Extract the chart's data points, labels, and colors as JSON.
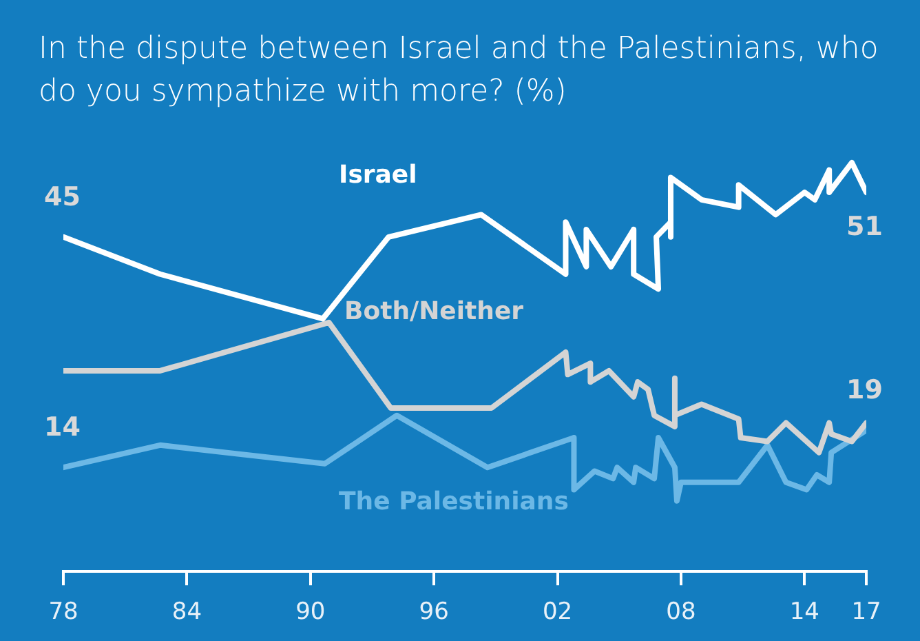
{
  "chart_data": {
    "type": "line",
    "title": "In the dispute between Israel and the Palestinians, who do you sympathize with more? (%)",
    "xlim": [
      1978,
      2017
    ],
    "xticks": [
      {
        "value": 1978,
        "label": "78"
      },
      {
        "value": 1984,
        "label": "84"
      },
      {
        "value": 1990,
        "label": "90"
      },
      {
        "value": 1996,
        "label": "96"
      },
      {
        "value": 2002,
        "label": "02"
      },
      {
        "value": 2008,
        "label": "08"
      },
      {
        "value": 2014,
        "label": "14"
      },
      {
        "value": 2017,
        "label": "17"
      }
    ],
    "tick_labels": "x",
    "grid": false,
    "legend": false,
    "marker": "none",
    "line_style": "solid",
    "series": [
      {
        "name": "Israel",
        "color": "#ffffff",
        "x": [
          1978,
          1982.7,
          1990.6,
          1993.8,
          1998.3,
          2002.4,
          2002.4,
          2003.4,
          2003.4,
          2004.6,
          2005.7,
          2005.7,
          2006.9,
          2006.8,
          2007.5,
          2007.5,
          2007.5,
          2009.0,
          2010.8,
          2010.8,
          2012.6,
          2014.0,
          2014.5,
          2015.2,
          2015.2,
          2016.3,
          2017
        ],
        "values": [
          45,
          40,
          34,
          45,
          48,
          40,
          47,
          41,
          46,
          41,
          46,
          40,
          38,
          45,
          47,
          45,
          53,
          50,
          49,
          52,
          48,
          51,
          50,
          54,
          51,
          55,
          51
        ],
        "value_labels": [
          "45",
          null,
          null,
          null,
          null,
          null,
          null,
          null,
          null,
          null,
          null,
          null,
          null,
          null,
          null,
          null,
          null,
          null,
          null,
          null,
          null,
          null,
          null,
          null,
          null,
          null,
          "51"
        ]
      },
      {
        "name": "Both/Neither",
        "color": "#d4d4d4",
        "x": [
          1978,
          1982.7,
          1990.9,
          1993.9,
          1998.8,
          2002.4,
          2002.5,
          2003.6,
          2003.6,
          2004.5,
          2005.7,
          2005.9,
          2006.4,
          2006.7,
          2007.7,
          2007.7,
          2007.7,
          2009.0,
          2010.8,
          2010.9,
          2012.2,
          2013.1,
          2014.7,
          2015.2,
          2015.3,
          2016.3,
          2017
        ],
        "values": [
          27,
          27,
          33.5,
          22,
          22,
          29.5,
          26.5,
          28,
          25.5,
          27,
          23.5,
          25.5,
          24.5,
          21,
          19.5,
          26,
          21,
          22.5,
          20.5,
          18,
          17.5,
          20,
          16,
          20,
          18.5,
          17.5,
          20
        ]
      },
      {
        "name": "The Palestinians",
        "color": "#6cb8e6",
        "x": [
          1978,
          1982.7,
          1990.7,
          1994.2,
          1998.6,
          2002.8,
          2002.8,
          2003.8,
          2004.7,
          2004.9,
          2005.7,
          2005.8,
          2006.7,
          2006.9,
          2007.7,
          2007.8,
          2008.0,
          2010.8,
          2012.2,
          2013.1,
          2014.1,
          2014.6,
          2015.2,
          2015.3,
          2017
        ],
        "values": [
          14,
          17,
          14.5,
          21,
          14,
          18,
          11,
          13.5,
          12.5,
          14,
          12,
          14,
          12.5,
          18,
          14,
          9.5,
          12,
          12,
          17,
          12,
          11,
          13,
          12,
          16,
          19
        ],
        "value_labels": [
          "14",
          null,
          null,
          null,
          null,
          null,
          null,
          null,
          null,
          null,
          null,
          null,
          null,
          null,
          null,
          null,
          null,
          null,
          null,
          null,
          null,
          null,
          null,
          null,
          "19"
        ]
      }
    ]
  }
}
